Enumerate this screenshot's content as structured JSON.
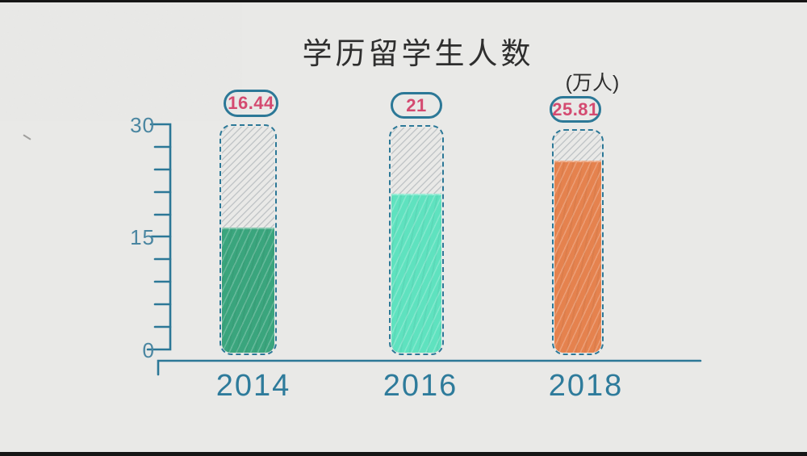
{
  "chart_data": {
    "type": "bar",
    "title": "学历留学生人数",
    "unit_label": "(万人)",
    "categories": [
      "2014",
      "2016",
      "2018"
    ],
    "values": [
      16.44,
      21,
      25.81
    ],
    "value_labels": [
      "16.44",
      "21",
      "25.81"
    ],
    "bar_fill_colors": [
      "#3aa57d",
      "#5fe2bf",
      "#e5824e"
    ],
    "ylim": [
      0,
      30
    ],
    "y_tick_labels": [
      "30",
      "15",
      "0"
    ],
    "y_tick_values": [
      30,
      15,
      0
    ],
    "y_minor_tick_step": 3,
    "xlabel": "",
    "ylabel": "",
    "grid": false,
    "legend": false,
    "style": "hand-drawn tube bars, empty portion hatched, value badges above bars"
  },
  "colors": {
    "axis_teal": "#2c7897",
    "year_label_teal": "#2e7b9b",
    "tick_label_teal": "#4a86a1",
    "value_pink": "#d44a70",
    "bar_2014_green": "#3aa57d",
    "bar_2016_mint": "#5fe2bf",
    "bar_2018_orange": "#e5824e",
    "paper_background": "#e9e9e7",
    "title_text": "#2e2e2e",
    "hatch_gray": "#c2c6c8",
    "letterbox_black": "#161616"
  }
}
